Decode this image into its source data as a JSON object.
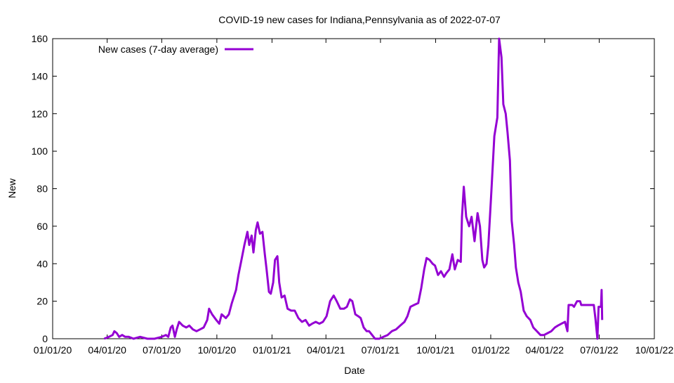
{
  "chart_data": {
    "type": "line",
    "title": "COVID-19 new cases for Indiana,Pennsylvania as of 2022-07-07",
    "xlabel": "Date",
    "ylabel": "New",
    "x_origin": "2020-01-01",
    "x_unit": "days since 2020-01-01",
    "xlim": [
      0,
      1004
    ],
    "ylim": [
      0,
      160
    ],
    "x_ticks": [
      {
        "label": "01/01/20",
        "day": 0
      },
      {
        "label": "04/01/20",
        "day": 91
      },
      {
        "label": "07/01/20",
        "day": 182
      },
      {
        "label": "10/01/20",
        "day": 274
      },
      {
        "label": "01/01/21",
        "day": 366
      },
      {
        "label": "04/01/21",
        "day": 456
      },
      {
        "label": "07/01/21",
        "day": 547
      },
      {
        "label": "10/01/21",
        "day": 639
      },
      {
        "label": "01/01/22",
        "day": 731
      },
      {
        "label": "04/01/22",
        "day": 821
      },
      {
        "label": "07/01/22",
        "day": 912
      },
      {
        "label": "10/01/22",
        "day": 1004
      }
    ],
    "y_ticks": [
      "0",
      "20",
      "40",
      "60",
      "80",
      "100",
      "120",
      "140",
      "160"
    ],
    "grid": false,
    "legend_position": "top-left",
    "color": "#9400d3",
    "series": [
      {
        "name": "New cases (7-day average)",
        "x": [
          86,
          94,
          100,
          103,
          107,
          111,
          116,
          121,
          127,
          135,
          146,
          158,
          170,
          182,
          189,
          193,
          197,
          200,
          204,
          207,
          211,
          217,
          223,
          228,
          234,
          240,
          246,
          252,
          258,
          261,
          266,
          273,
          278,
          282,
          289,
          294,
          299,
          306,
          310,
          315,
          320,
          325,
          328,
          332,
          335,
          339,
          342,
          346,
          350,
          354,
          357,
          361,
          364,
          368,
          371,
          375,
          378,
          382,
          387,
          392,
          398,
          404,
          410,
          416,
          422,
          428,
          433,
          439,
          445,
          451,
          457,
          463,
          469,
          474,
          480,
          486,
          491,
          496,
          500,
          505,
          510,
          514,
          519,
          524,
          528,
          533,
          538,
          545,
          552,
          559,
          566,
          573,
          580,
          587,
          592,
          597,
          603,
          610,
          615,
          620,
          624,
          629,
          634,
          638,
          643,
          648,
          653,
          657,
          662,
          667,
          671,
          676,
          681,
          683,
          686,
          690,
          695,
          699,
          704,
          709,
          713,
          717,
          720,
          724,
          727,
          732,
          737,
          742,
          745,
          749,
          752,
          756,
          759,
          763,
          766,
          770,
          773,
          777,
          781,
          786,
          791,
          797,
          802,
          808,
          814,
          820,
          826,
          832,
          838,
          843,
          849,
          855,
          859,
          861,
          867,
          870,
          875,
          880,
          882,
          890,
          896,
          903,
          906,
          909,
          911,
          915,
          916,
          917
        ],
        "y": [
          0,
          1,
          2,
          4,
          3,
          1,
          2,
          1,
          1,
          0,
          1,
          0,
          0,
          1,
          2,
          1,
          6,
          7,
          1,
          5,
          9,
          7,
          6,
          7,
          5,
          4,
          5,
          6,
          10,
          16,
          13,
          10,
          8,
          13,
          11,
          13,
          19,
          26,
          34,
          42,
          50,
          57,
          50,
          55,
          46,
          58,
          62,
          56,
          57,
          45,
          37,
          25,
          24,
          30,
          42,
          44,
          30,
          22,
          23,
          16,
          15,
          15,
          11,
          9,
          10,
          7,
          8,
          9,
          8,
          9,
          12,
          20,
          23,
          20,
          16,
          16,
          17,
          21,
          20,
          13,
          12,
          11,
          6,
          4,
          4,
          2,
          0,
          0,
          1,
          2,
          4,
          5,
          7,
          9,
          12,
          17,
          18,
          19,
          27,
          37,
          43,
          42,
          40,
          39,
          34,
          36,
          33,
          35,
          37,
          45,
          37,
          42,
          41,
          65,
          81,
          65,
          60,
          65,
          52,
          67,
          60,
          42,
          38,
          40,
          50,
          78,
          108,
          118,
          160,
          150,
          125,
          120,
          110,
          95,
          63,
          50,
          38,
          30,
          25,
          15,
          12,
          10,
          6,
          4,
          2,
          2,
          3,
          4,
          6,
          7,
          8,
          9,
          4,
          18,
          18,
          17,
          20,
          20,
          18,
          18,
          18,
          18,
          10,
          0,
          17,
          17,
          26,
          10
        ]
      }
    ]
  }
}
